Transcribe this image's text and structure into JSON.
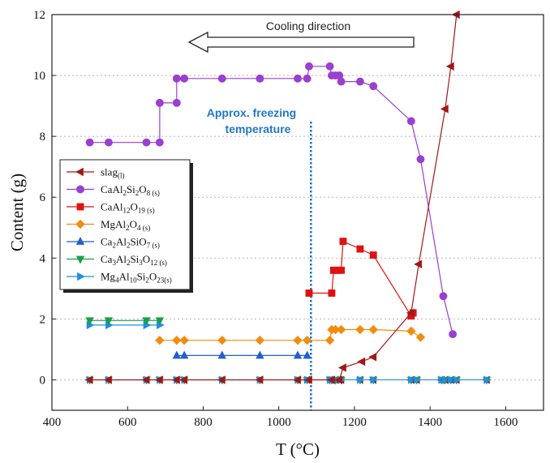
{
  "chart_data": {
    "type": "line",
    "title": "",
    "xlabel": "T (°C)",
    "ylabel": "Content (g)",
    "xlim": [
      400,
      1700
    ],
    "ylim": [
      -1,
      12
    ],
    "x_ticks": [
      "400",
      "600",
      "800",
      "1000",
      "1200",
      "1400",
      "1600"
    ],
    "y_ticks": [
      "0",
      "2",
      "4",
      "6",
      "8",
      "10",
      "12"
    ],
    "grid": "horizontal dotted",
    "legend_position": "left",
    "annotations": {
      "cooling_direction": "Cooling direction",
      "freezing_line1": "Approx. freezing",
      "freezing_line2": "temperature",
      "freezing_x": 1085
    },
    "series": [
      {
        "name": "slag(l)",
        "legend_main": "slag",
        "legend_sub": "(l)",
        "color": "#a01818",
        "marker": "triangle-left",
        "x": [
          500,
          550,
          650,
          685,
          730,
          750,
          850,
          950,
          1050,
          1080,
          1140,
          1160,
          1170,
          1220,
          1250,
          1350,
          1370,
          1440,
          1455,
          1470
        ],
        "y": [
          0,
          0,
          0,
          0,
          0,
          0,
          0,
          0,
          0,
          0,
          0,
          0,
          0.4,
          0.6,
          0.75,
          2.2,
          3.8,
          8.9,
          10.3,
          12
        ]
      },
      {
        "name": "CaAl2Si2O8(s)",
        "legend_main": "CaAl",
        "legend_parts": [
          "CaAl",
          "2",
          "Si",
          "2",
          "O",
          "8 (s)"
        ],
        "color": "#9a3fd0",
        "marker": "circle",
        "x": [
          500,
          550,
          650,
          685,
          685,
          730,
          730,
          750,
          850,
          950,
          1050,
          1075,
          1080,
          1135,
          1140,
          1150,
          1160,
          1165,
          1215,
          1250,
          1350,
          1375,
          1435,
          1460
        ],
        "y": [
          7.8,
          7.8,
          7.8,
          7.8,
          9.1,
          9.1,
          9.9,
          9.9,
          9.9,
          9.9,
          9.9,
          9.9,
          10.3,
          10.3,
          10.0,
          10.0,
          10.0,
          9.8,
          9.8,
          9.65,
          8.5,
          7.25,
          2.75,
          1.5
        ]
      },
      {
        "name": "CaAl12O19(s)",
        "legend_parts": [
          "CaAl",
          "12",
          "O",
          "19 (s)"
        ],
        "color": "#e01010",
        "marker": "square",
        "x": [
          1080,
          1140,
          1145,
          1155,
          1165,
          1170,
          1215,
          1250,
          1350,
          1355
        ],
        "y": [
          2.85,
          2.85,
          3.6,
          3.6,
          3.6,
          4.55,
          4.3,
          4.1,
          2.1,
          2.2
        ]
      },
      {
        "name": "MgAl2O4(s)",
        "legend_parts": [
          "MgAl",
          "2",
          "O",
          "4 (s)"
        ],
        "color": "#f28c0f",
        "marker": "diamond",
        "x": [
          685,
          730,
          750,
          850,
          950,
          1050,
          1075,
          1135,
          1140,
          1150,
          1165,
          1215,
          1250,
          1350,
          1375
        ],
        "y": [
          1.3,
          1.3,
          1.3,
          1.3,
          1.3,
          1.3,
          1.3,
          1.3,
          1.65,
          1.65,
          1.65,
          1.65,
          1.65,
          1.6,
          1.4
        ]
      },
      {
        "name": "Ca2Al2SiO7(s)",
        "legend_parts": [
          "Ca",
          "2",
          "Al",
          "2",
          "SiO",
          "7 (s)"
        ],
        "color": "#1f5fd0",
        "marker": "triangle-up",
        "x": [
          730,
          750,
          850,
          950,
          1050,
          1075
        ],
        "y": [
          0.8,
          0.8,
          0.8,
          0.8,
          0.8,
          0.8
        ]
      },
      {
        "name": "Ca3Al2Si3O12(s)",
        "legend_parts": [
          "Ca",
          "3",
          "Al",
          "2",
          "Si",
          "3",
          "O",
          "12 (s)"
        ],
        "color": "#1a9e45",
        "marker": "triangle-down",
        "x": [
          500,
          550,
          650,
          685
        ],
        "y": [
          1.95,
          1.95,
          1.95,
          1.95
        ]
      },
      {
        "name": "Mg4Al10Si2O23(s)",
        "legend_parts": [
          "Mg",
          "4",
          "Al",
          "10",
          "Si",
          "2",
          "O",
          "23(s)"
        ],
        "color": "#1e8fe6",
        "marker": "triangle-right",
        "x": [
          500,
          550,
          650,
          685
        ],
        "y": [
          1.8,
          1.8,
          1.8,
          1.8
        ]
      }
    ],
    "zero_markers_x": [
      500,
      550,
      650,
      685,
      730,
      750,
      850,
      950,
      1050,
      1075,
      1135,
      1140,
      1150,
      1165,
      1215,
      1250,
      1350,
      1365,
      1430,
      1440,
      1455,
      1470,
      1550
    ]
  }
}
